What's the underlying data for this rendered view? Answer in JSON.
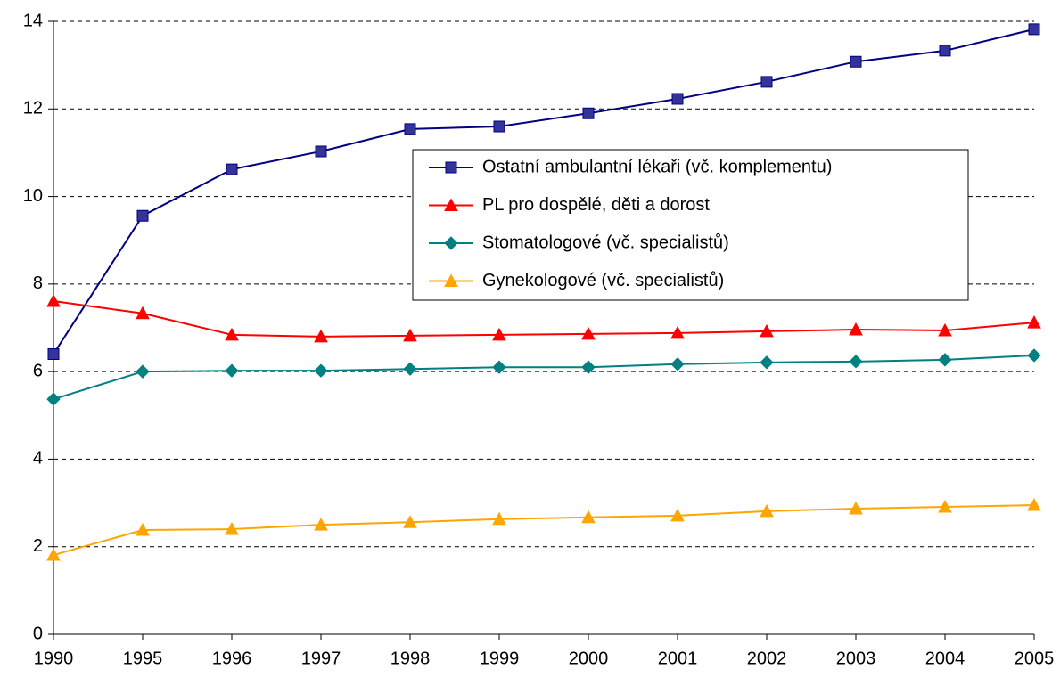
{
  "chart_data": {
    "type": "line",
    "categories": [
      "1990",
      "1995",
      "1996",
      "1997",
      "1998",
      "1999",
      "2000",
      "2001",
      "2002",
      "2003",
      "2004",
      "2005"
    ],
    "series": [
      {
        "name": "Ostatní ambulantní lékaři (vč. komplementu)",
        "color": "#000080",
        "marker": "square",
        "values": [
          6.4,
          9.56,
          10.62,
          11.03,
          11.54,
          11.6,
          11.9,
          12.23,
          12.62,
          13.08,
          13.33,
          13.82
        ]
      },
      {
        "name": "PL pro dospělé, děti a dorost",
        "color": "#ff0000",
        "marker": "triangle",
        "values": [
          7.61,
          7.33,
          6.84,
          6.8,
          6.82,
          6.84,
          6.86,
          6.88,
          6.92,
          6.96,
          6.94,
          7.12
        ]
      },
      {
        "name": "Stomatologové (vč. specialistů)",
        "color": "#008080",
        "marker": "diamond",
        "values": [
          5.37,
          6.0,
          6.02,
          6.02,
          6.06,
          6.1,
          6.1,
          6.17,
          6.21,
          6.23,
          6.27,
          6.37
        ]
      },
      {
        "name": "Gynekologové (vč. specialistů)",
        "color": "#ffa500",
        "marker": "triangle",
        "values": [
          1.81,
          2.38,
          2.4,
          2.5,
          2.56,
          2.63,
          2.67,
          2.71,
          2.81,
          2.87,
          2.91,
          2.95
        ]
      }
    ],
    "ylim": [
      0,
      14
    ],
    "yticks": [
      0,
      2,
      4,
      6,
      8,
      10,
      12,
      14
    ],
    "grid": true
  }
}
